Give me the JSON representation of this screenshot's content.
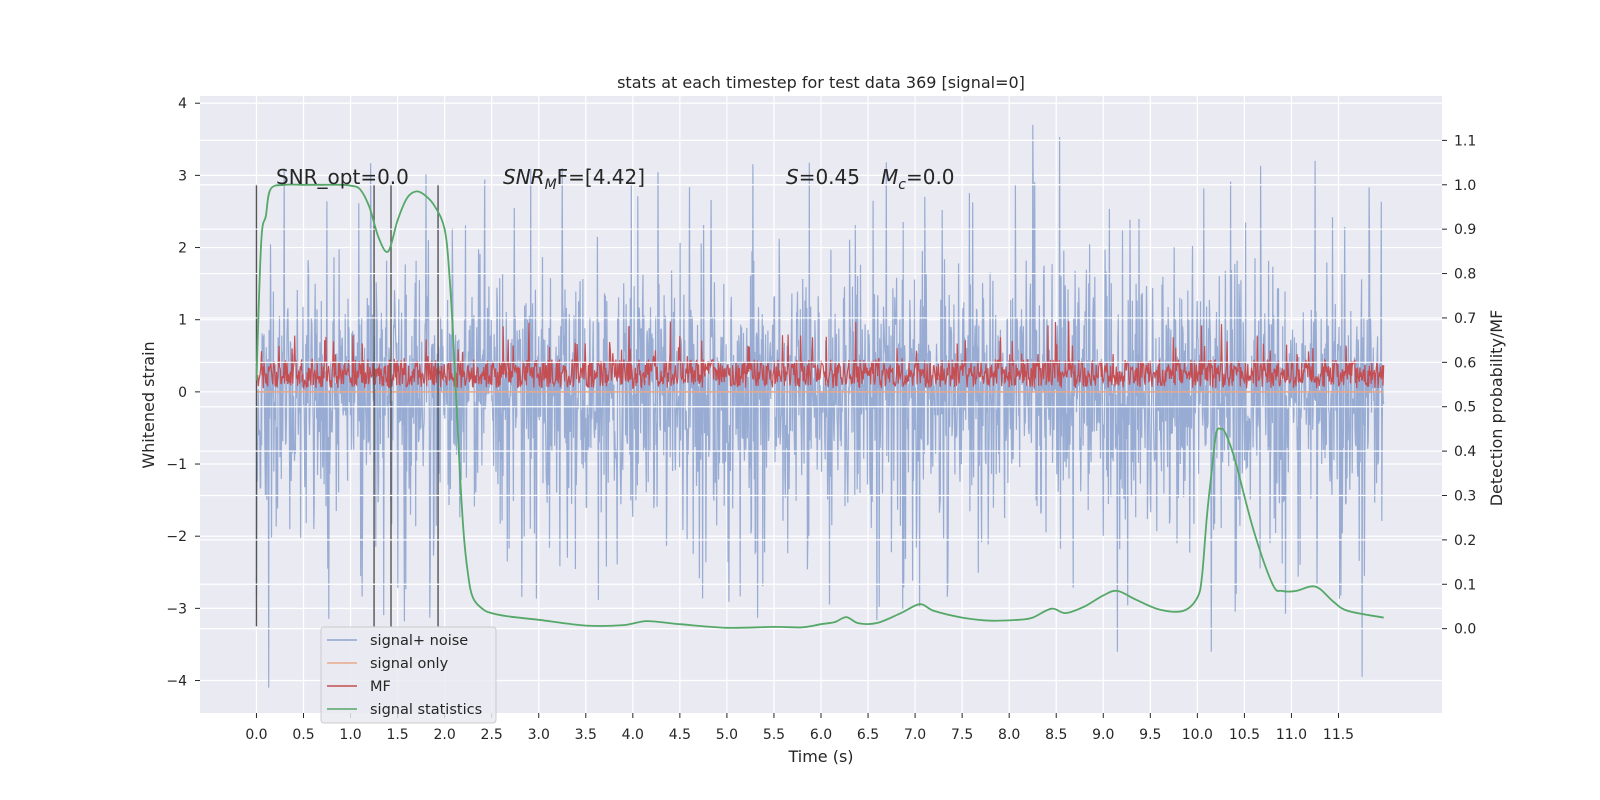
{
  "chart_data": {
    "type": "line",
    "title": "stats at each timestep for test data 369 [signal=0]",
    "xlabel": "Time (s)",
    "ylabel": "Whitened strain",
    "y2label": "Detection probability/MF",
    "xlim": [
      -0.6,
      12.6
    ],
    "ylim": [
      -4.45,
      4.1
    ],
    "y2lim": [
      -0.19,
      1.2
    ],
    "x_ticks": [
      "0.0",
      "0.5",
      "1.0",
      "1.5",
      "2.0",
      "2.5",
      "3.0",
      "3.5",
      "4.0",
      "4.5",
      "5.0",
      "5.5",
      "6.0",
      "6.5",
      "7.0",
      "7.5",
      "8.0",
      "8.5",
      "9.0",
      "9.5",
      "10.0",
      "10.5",
      "11.0",
      "11.5"
    ],
    "y_ticks": [
      "4",
      "3",
      "2",
      "1",
      "0",
      "−1",
      "−2",
      "−3",
      "−4"
    ],
    "y2_ticks": [
      "1.1",
      "1.0",
      "0.9",
      "0.8",
      "0.7",
      "0.6",
      "0.5",
      "0.4",
      "0.3",
      "0.2",
      "0.1",
      "0.0"
    ],
    "grid": true,
    "legend_position": "lower-left",
    "annotations": {
      "snr_opt": "SNR_opt=0.0",
      "snr_mf_main": "SNR",
      "snr_mf_sub": "M",
      "snr_mf_rest": "F=[4.42]",
      "s_main": "S",
      "s_rest": "=0.45",
      "mc_main": "M",
      "mc_sub": "c",
      "mc_rest": "=0.0"
    },
    "vertical_markers_x": [
      0.0,
      1.25,
      1.43,
      1.93
    ],
    "vertical_marker_range": [
      -3.25,
      2.88
    ],
    "series": [
      {
        "name": "signal+ noise",
        "axis": "left",
        "color": "#8fa5cf",
        "style": "dense-noise",
        "x_range": [
          0.0,
          11.98
        ],
        "band": [
          -2.0,
          2.0
        ],
        "spike_range": [
          -4.1,
          3.7
        ],
        "notable_peaks": [
          [
            0.13,
            -4.1
          ],
          [
            8.25,
            3.7
          ],
          [
            11.25,
            3.2
          ],
          [
            11.75,
            -3.95
          ],
          [
            10.15,
            -3.6
          ],
          [
            9.15,
            -3.6
          ]
        ]
      },
      {
        "name": "signal only",
        "axis": "left",
        "color": "#e8a98b",
        "style": "flat",
        "values": [
          [
            0.0,
            0.0
          ],
          [
            11.98,
            0.0
          ]
        ]
      },
      {
        "name": "MF",
        "axis": "left",
        "color": "#c44e52",
        "style": "dense-noise",
        "x_range": [
          0.0,
          11.98
        ],
        "band": [
          0.05,
          0.45
        ],
        "spike_range": [
          0.0,
          1.0
        ]
      },
      {
        "name": "signal statistics",
        "axis": "right",
        "color": "#55a868",
        "style": "line",
        "x": [
          0.0,
          0.05,
          0.1,
          0.15,
          0.3,
          0.5,
          0.7,
          0.9,
          1.0,
          1.1,
          1.2,
          1.3,
          1.4,
          1.5,
          1.6,
          1.7,
          1.8,
          1.9,
          2.0,
          2.05,
          2.1,
          2.15,
          2.2,
          2.25,
          2.3,
          2.4,
          2.5,
          2.7,
          3.0,
          3.5,
          3.9,
          4.15,
          4.5,
          5.0,
          5.5,
          5.8,
          6.0,
          6.15,
          6.27,
          6.4,
          6.6,
          6.85,
          7.05,
          7.2,
          7.5,
          7.8,
          8.1,
          8.25,
          8.45,
          8.6,
          8.8,
          9.0,
          9.15,
          9.35,
          9.6,
          9.85,
          10.0,
          10.05,
          10.1,
          10.15,
          10.2,
          10.25,
          10.3,
          10.4,
          10.6,
          10.8,
          10.9,
          11.05,
          11.2,
          11.3,
          11.45,
          11.6,
          11.98
        ],
        "values": [
          0.56,
          0.87,
          0.93,
          0.99,
          1.0,
          1.0,
          1.0,
          1.0,
          0.998,
          0.99,
          0.95,
          0.88,
          0.85,
          0.92,
          0.97,
          0.985,
          0.975,
          0.95,
          0.9,
          0.8,
          0.62,
          0.4,
          0.22,
          0.12,
          0.07,
          0.045,
          0.035,
          0.027,
          0.02,
          0.007,
          0.008,
          0.017,
          0.01,
          0.002,
          0.004,
          0.003,
          0.01,
          0.015,
          0.026,
          0.012,
          0.013,
          0.035,
          0.055,
          0.04,
          0.025,
          0.018,
          0.02,
          0.025,
          0.045,
          0.035,
          0.05,
          0.075,
          0.085,
          0.065,
          0.043,
          0.04,
          0.07,
          0.12,
          0.25,
          0.35,
          0.44,
          0.45,
          0.44,
          0.38,
          0.22,
          0.1,
          0.085,
          0.085,
          0.095,
          0.09,
          0.06,
          0.04,
          0.025
        ]
      }
    ]
  }
}
